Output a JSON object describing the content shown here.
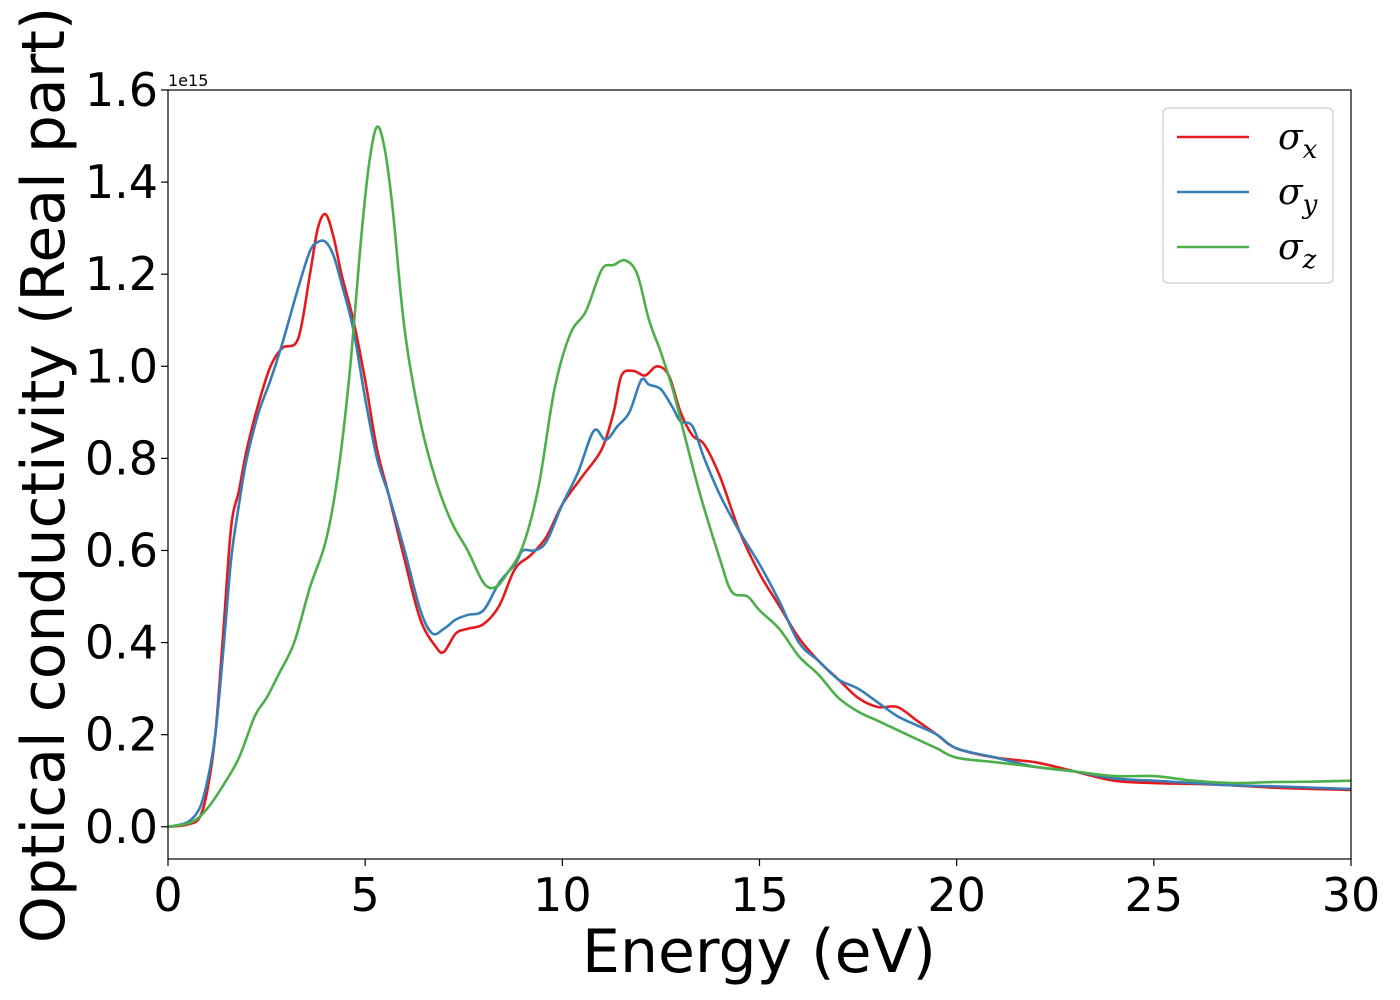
{
  "chart_data": {
    "type": "line",
    "xlabel": "Energy (eV)",
    "ylabel": "Optical conductivity (Real part)",
    "y_offset_label": "1e15",
    "xlim": [
      0,
      30
    ],
    "ylim": [
      -0.07,
      1.6
    ],
    "x_ticks": [
      0,
      5,
      10,
      15,
      20,
      25,
      30
    ],
    "x_tick_labels": [
      "0",
      "5",
      "10",
      "15",
      "20",
      "25",
      "30"
    ],
    "y_ticks": [
      0.0,
      0.2,
      0.4,
      0.6,
      0.8,
      1.0,
      1.2,
      1.4,
      1.6
    ],
    "y_tick_labels": [
      "0.0",
      "0.2",
      "0.4",
      "0.6",
      "0.8",
      "1.0",
      "1.2",
      "1.4",
      "1.6"
    ],
    "grid": false,
    "legend": {
      "position": "top-right"
    },
    "series": [
      {
        "name": "σx",
        "symbol": "σ",
        "subscript": "x",
        "color": "#e41a1c",
        "x": [
          0,
          0.5,
          0.8,
          1.0,
          1.2,
          1.4,
          1.6,
          1.8,
          2.0,
          2.3,
          2.6,
          2.9,
          3.3,
          3.6,
          3.8,
          4.0,
          4.2,
          4.4,
          4.7,
          5.0,
          5.3,
          5.6,
          6.0,
          6.4,
          6.8,
          7.0,
          7.3,
          7.6,
          8.0,
          8.4,
          8.8,
          9.2,
          9.6,
          10.0,
          10.5,
          11.0,
          11.3,
          11.5,
          11.8,
          12.1,
          12.4,
          12.7,
          13.0,
          13.3,
          13.6,
          14.0,
          14.5,
          15.0,
          15.5,
          16.0,
          16.5,
          17.0,
          17.5,
          18.0,
          18.5,
          19.0,
          19.5,
          20.0,
          21.0,
          22.0,
          23.0,
          24.0,
          25.0,
          26.0,
          27.0,
          28.0,
          29.0,
          30.0
        ],
        "y": [
          0.0,
          0.005,
          0.02,
          0.08,
          0.2,
          0.42,
          0.65,
          0.73,
          0.82,
          0.92,
          1.0,
          1.04,
          1.06,
          1.2,
          1.3,
          1.33,
          1.28,
          1.2,
          1.1,
          0.97,
          0.82,
          0.72,
          0.58,
          0.45,
          0.39,
          0.38,
          0.42,
          0.43,
          0.44,
          0.48,
          0.56,
          0.59,
          0.63,
          0.7,
          0.76,
          0.82,
          0.9,
          0.98,
          0.99,
          0.98,
          1.0,
          0.98,
          0.9,
          0.85,
          0.83,
          0.76,
          0.64,
          0.55,
          0.48,
          0.41,
          0.36,
          0.32,
          0.28,
          0.26,
          0.26,
          0.23,
          0.2,
          0.17,
          0.15,
          0.14,
          0.12,
          0.1,
          0.095,
          0.093,
          0.09,
          0.085,
          0.082,
          0.08
        ]
      },
      {
        "name": "σy",
        "symbol": "σ",
        "subscript": "y",
        "color": "#377eb8",
        "x": [
          0,
          0.5,
          0.8,
          1.0,
          1.2,
          1.4,
          1.6,
          1.8,
          2.0,
          2.3,
          2.6,
          2.9,
          3.3,
          3.6,
          3.8,
          4.0,
          4.2,
          4.4,
          4.7,
          5.0,
          5.3,
          5.6,
          6.0,
          6.4,
          6.7,
          7.0,
          7.3,
          7.6,
          8.0,
          8.4,
          8.8,
          9.0,
          9.3,
          9.6,
          10.0,
          10.4,
          10.8,
          11.1,
          11.4,
          11.7,
          12.0,
          12.2,
          12.5,
          12.8,
          13.0,
          13.3,
          13.6,
          14.0,
          14.5,
          15.0,
          15.5,
          16.0,
          16.5,
          17.0,
          17.5,
          18.0,
          18.5,
          19.0,
          19.5,
          20.0,
          21.0,
          22.0,
          23.0,
          24.0,
          25.0,
          26.0,
          27.0,
          28.0,
          29.0,
          30.0
        ],
        "y": [
          0.0,
          0.01,
          0.04,
          0.1,
          0.2,
          0.38,
          0.58,
          0.7,
          0.8,
          0.9,
          0.97,
          1.05,
          1.17,
          1.25,
          1.27,
          1.27,
          1.24,
          1.18,
          1.08,
          0.93,
          0.8,
          0.72,
          0.6,
          0.47,
          0.42,
          0.43,
          0.45,
          0.46,
          0.47,
          0.53,
          0.57,
          0.6,
          0.6,
          0.62,
          0.7,
          0.77,
          0.86,
          0.84,
          0.87,
          0.9,
          0.97,
          0.96,
          0.95,
          0.91,
          0.88,
          0.87,
          0.8,
          0.72,
          0.64,
          0.57,
          0.49,
          0.4,
          0.36,
          0.32,
          0.3,
          0.27,
          0.24,
          0.22,
          0.2,
          0.17,
          0.15,
          0.13,
          0.12,
          0.105,
          0.1,
          0.095,
          0.09,
          0.088,
          0.085,
          0.082
        ]
      },
      {
        "name": "σz",
        "symbol": "σ",
        "subscript": "z",
        "color": "#4daf4a",
        "x": [
          0,
          0.6,
          1.0,
          1.4,
          1.8,
          2.2,
          2.5,
          2.8,
          3.2,
          3.6,
          4.0,
          4.3,
          4.6,
          4.9,
          5.1,
          5.3,
          5.5,
          5.7,
          6.0,
          6.4,
          6.8,
          7.2,
          7.6,
          8.0,
          8.3,
          8.6,
          9.0,
          9.4,
          9.8,
          10.2,
          10.6,
          11.0,
          11.3,
          11.6,
          11.9,
          12.2,
          12.5,
          12.8,
          13.1,
          13.5,
          14.0,
          14.3,
          14.7,
          15.0,
          15.5,
          16.0,
          16.5,
          17.0,
          17.5,
          18.0,
          18.5,
          19.0,
          19.5,
          20.0,
          21.0,
          22.0,
          23.0,
          24.0,
          25.0,
          26.0,
          27.0,
          28.0,
          29.0,
          30.0
        ],
        "y": [
          0.0,
          0.01,
          0.04,
          0.09,
          0.15,
          0.24,
          0.28,
          0.33,
          0.4,
          0.52,
          0.62,
          0.76,
          0.98,
          1.28,
          1.44,
          1.52,
          1.47,
          1.34,
          1.08,
          0.88,
          0.75,
          0.66,
          0.6,
          0.53,
          0.52,
          0.55,
          0.61,
          0.74,
          0.95,
          1.07,
          1.12,
          1.21,
          1.22,
          1.23,
          1.2,
          1.1,
          1.03,
          0.95,
          0.85,
          0.72,
          0.58,
          0.51,
          0.5,
          0.47,
          0.43,
          0.37,
          0.33,
          0.28,
          0.25,
          0.23,
          0.21,
          0.19,
          0.17,
          0.15,
          0.14,
          0.13,
          0.12,
          0.11,
          0.11,
          0.1,
          0.095,
          0.097,
          0.098,
          0.1
        ]
      }
    ]
  }
}
